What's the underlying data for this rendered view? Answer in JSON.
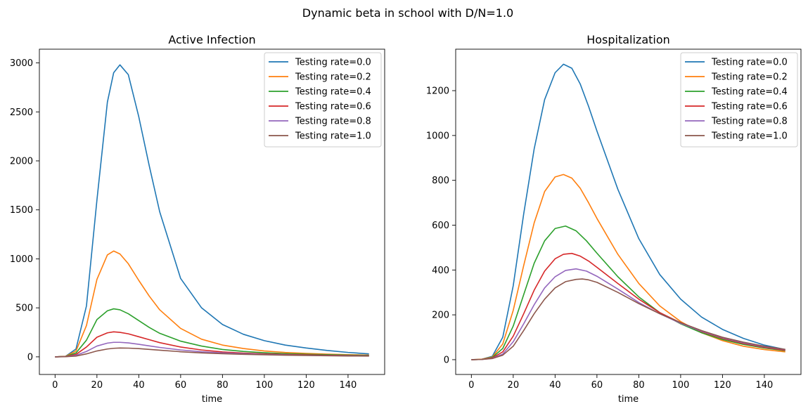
{
  "suptitle": "Dynamic beta in school with D/N=1.0",
  "legend_position": "upper right",
  "series_colors": [
    "#1f77b4",
    "#ff7f0e",
    "#2ca02c",
    "#d62728",
    "#9467bd",
    "#8c564b"
  ],
  "chart_data": [
    {
      "type": "line",
      "title": "Active Infection",
      "xlabel": "time",
      "ylabel": "",
      "xlim": [
        -7.5,
        157.5
      ],
      "ylim": [
        -180,
        3140
      ],
      "xticks": [
        0,
        20,
        40,
        60,
        80,
        100,
        120,
        140
      ],
      "yticks": [
        0,
        500,
        1000,
        1500,
        2000,
        2500,
        3000
      ],
      "grid": false,
      "legend": "upper right",
      "series": [
        {
          "name": "Testing rate=0.0",
          "x": [
            0,
            5,
            10,
            15,
            20,
            25,
            28,
            31,
            35,
            40,
            45,
            50,
            60,
            70,
            80,
            90,
            100,
            110,
            120,
            130,
            140,
            150
          ],
          "y": [
            0,
            5,
            80,
            520,
            1600,
            2600,
            2900,
            2980,
            2880,
            2450,
            1950,
            1480,
            800,
            500,
            330,
            230,
            165,
            120,
            90,
            65,
            45,
            30
          ]
        },
        {
          "name": "Testing rate=0.2",
          "x": [
            0,
            5,
            10,
            15,
            20,
            25,
            28,
            31,
            35,
            40,
            45,
            50,
            60,
            70,
            80,
            90,
            100,
            110,
            120,
            130,
            140,
            150
          ],
          "y": [
            0,
            5,
            60,
            320,
            790,
            1040,
            1080,
            1050,
            950,
            780,
            620,
            480,
            290,
            180,
            120,
            85,
            60,
            45,
            35,
            28,
            22,
            18
          ]
        },
        {
          "name": "Testing rate=0.4",
          "x": [
            0,
            5,
            10,
            15,
            20,
            25,
            28,
            31,
            35,
            40,
            45,
            50,
            60,
            70,
            80,
            90,
            100,
            110,
            120,
            130,
            140,
            150
          ],
          "y": [
            0,
            4,
            40,
            170,
            380,
            470,
            490,
            480,
            440,
            370,
            300,
            240,
            160,
            110,
            75,
            55,
            42,
            33,
            27,
            22,
            18,
            15
          ]
        },
        {
          "name": "Testing rate=0.6",
          "x": [
            0,
            5,
            10,
            15,
            20,
            25,
            28,
            31,
            35,
            40,
            45,
            50,
            60,
            70,
            80,
            90,
            100,
            110,
            120,
            130,
            140,
            150
          ],
          "y": [
            0,
            3,
            25,
            100,
            200,
            245,
            255,
            250,
            235,
            205,
            175,
            145,
            100,
            70,
            50,
            38,
            30,
            24,
            20,
            16,
            13,
            11
          ]
        },
        {
          "name": "Testing rate=0.8",
          "x": [
            0,
            5,
            10,
            15,
            20,
            25,
            28,
            31,
            35,
            40,
            45,
            50,
            60,
            70,
            80,
            90,
            100,
            110,
            120,
            130,
            140,
            150
          ],
          "y": [
            0,
            2,
            15,
            55,
            110,
            140,
            148,
            148,
            142,
            128,
            112,
            96,
            70,
            52,
            40,
            32,
            25,
            20,
            16,
            13,
            11,
            9
          ]
        },
        {
          "name": "Testing rate=1.0",
          "x": [
            0,
            5,
            10,
            15,
            20,
            25,
            28,
            31,
            35,
            40,
            45,
            50,
            60,
            70,
            80,
            90,
            100,
            110,
            120,
            130,
            140,
            150
          ],
          "y": [
            0,
            1,
            8,
            30,
            60,
            80,
            87,
            90,
            89,
            84,
            76,
            68,
            52,
            40,
            32,
            26,
            21,
            17,
            14,
            11,
            9,
            8
          ]
        }
      ]
    },
    {
      "type": "line",
      "title": "Hospitalization",
      "xlabel": "time",
      "ylabel": "",
      "xlim": [
        -7.5,
        157.5
      ],
      "ylim": [
        -66,
        1385
      ],
      "xticks": [
        0,
        20,
        40,
        60,
        80,
        100,
        120,
        140
      ],
      "yticks": [
        0,
        200,
        400,
        600,
        800,
        1000,
        1200
      ],
      "grid": false,
      "legend": "upper right",
      "series": [
        {
          "name": "Testing rate=0.0",
          "x": [
            0,
            5,
            10,
            15,
            20,
            25,
            30,
            35,
            40,
            44,
            48,
            52,
            56,
            60,
            70,
            80,
            90,
            100,
            110,
            120,
            130,
            140,
            150
          ],
          "y": [
            0,
            2,
            15,
            100,
            330,
            650,
            940,
            1160,
            1280,
            1318,
            1300,
            1230,
            1130,
            1020,
            760,
            540,
            380,
            270,
            190,
            135,
            95,
            65,
            45
          ]
        },
        {
          "name": "Testing rate=0.2",
          "x": [
            0,
            5,
            10,
            15,
            20,
            25,
            30,
            35,
            40,
            44,
            48,
            52,
            56,
            60,
            70,
            80,
            90,
            100,
            110,
            120,
            130,
            140,
            150
          ],
          "y": [
            0,
            2,
            12,
            70,
            220,
            420,
            610,
            750,
            815,
            826,
            810,
            765,
            700,
            630,
            470,
            340,
            240,
            170,
            120,
            85,
            60,
            45,
            35
          ]
        },
        {
          "name": "Testing rate=0.4",
          "x": [
            0,
            5,
            10,
            15,
            20,
            25,
            30,
            35,
            40,
            45,
            50,
            55,
            60,
            70,
            80,
            90,
            100,
            110,
            120,
            130,
            140,
            150
          ],
          "y": [
            0,
            1,
            10,
            50,
            150,
            290,
            430,
            530,
            585,
            596,
            575,
            530,
            475,
            370,
            280,
            210,
            160,
            120,
            90,
            68,
            52,
            40
          ]
        },
        {
          "name": "Testing rate=0.6",
          "x": [
            0,
            5,
            10,
            15,
            20,
            25,
            30,
            35,
            40,
            44,
            48,
            52,
            56,
            60,
            70,
            80,
            90,
            100,
            110,
            120,
            130,
            140,
            150
          ],
          "y": [
            0,
            1,
            8,
            35,
            105,
            205,
            310,
            395,
            450,
            470,
            474,
            462,
            440,
            412,
            340,
            270,
            210,
            165,
            125,
            95,
            72,
            55,
            42
          ]
        },
        {
          "name": "Testing rate=0.8",
          "x": [
            0,
            5,
            10,
            15,
            20,
            25,
            30,
            35,
            40,
            45,
            50,
            55,
            60,
            70,
            80,
            90,
            100,
            110,
            120,
            130,
            140,
            150
          ],
          "y": [
            0,
            1,
            6,
            25,
            80,
            160,
            245,
            320,
            370,
            398,
            405,
            395,
            372,
            315,
            255,
            205,
            162,
            127,
            98,
            75,
            58,
            45
          ]
        },
        {
          "name": "Testing rate=1.0",
          "x": [
            0,
            5,
            10,
            15,
            20,
            25,
            30,
            35,
            40,
            45,
            50,
            53,
            56,
            60,
            70,
            80,
            90,
            100,
            110,
            120,
            130,
            140,
            150
          ],
          "y": [
            0,
            1,
            5,
            20,
            60,
            130,
            205,
            270,
            320,
            348,
            358,
            360,
            356,
            345,
            300,
            250,
            205,
            165,
            130,
            100,
            78,
            60,
            46
          ]
        }
      ]
    }
  ]
}
